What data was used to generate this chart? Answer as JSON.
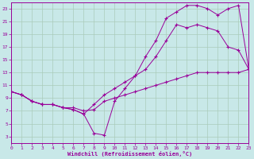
{
  "bg_color": "#c8e8e8",
  "grid_color": "#aaccbb",
  "line_color": "#990099",
  "xlim": [
    0,
    23
  ],
  "ylim": [
    2,
    24
  ],
  "xticks": [
    0,
    1,
    2,
    3,
    4,
    5,
    6,
    7,
    8,
    9,
    10,
    11,
    12,
    13,
    14,
    15,
    16,
    17,
    18,
    19,
    20,
    21,
    22,
    23
  ],
  "yticks": [
    3,
    5,
    7,
    9,
    11,
    13,
    15,
    17,
    19,
    21,
    23
  ],
  "xlabel": "Windchill (Refroidissement éolien,°C)",
  "line1_x": [
    0,
    1,
    2,
    3,
    4,
    5,
    6,
    7,
    8,
    9,
    10,
    11,
    12,
    13,
    14,
    15,
    16,
    17,
    18,
    19,
    20,
    21,
    22,
    23
  ],
  "line1_y": [
    10,
    9.5,
    8.5,
    8.0,
    8.0,
    7.5,
    7.2,
    6.5,
    3.5,
    3.2,
    8.5,
    10.5,
    12.5,
    15.5,
    18.0,
    21.5,
    22.5,
    23.5,
    23.5,
    23.0,
    22.0,
    23.0,
    23.5,
    13.5
  ],
  "line2_x": [
    0,
    1,
    2,
    3,
    4,
    5,
    6,
    7,
    8,
    9,
    10,
    11,
    12,
    13,
    14,
    15,
    16,
    17,
    18,
    19,
    20,
    21,
    22,
    23
  ],
  "line2_y": [
    10,
    9.5,
    8.5,
    8.0,
    8.0,
    7.5,
    7.2,
    6.5,
    8.0,
    9.5,
    10.5,
    11.5,
    12.5,
    13.5,
    15.5,
    18.0,
    20.5,
    20.0,
    20.5,
    20.0,
    19.5,
    17.0,
    16.5,
    13.5
  ],
  "line3_x": [
    0,
    1,
    2,
    3,
    4,
    5,
    6,
    7,
    8,
    9,
    10,
    11,
    12,
    13,
    14,
    15,
    16,
    17,
    18,
    19,
    20,
    21,
    22,
    23
  ],
  "line3_y": [
    10,
    9.5,
    8.5,
    8.0,
    8.0,
    7.5,
    7.5,
    7.0,
    7.2,
    8.5,
    9.0,
    9.5,
    10.0,
    10.5,
    11.0,
    11.5,
    12.0,
    12.5,
    13.0,
    13.0,
    13.0,
    13.0,
    13.0,
    13.5
  ]
}
